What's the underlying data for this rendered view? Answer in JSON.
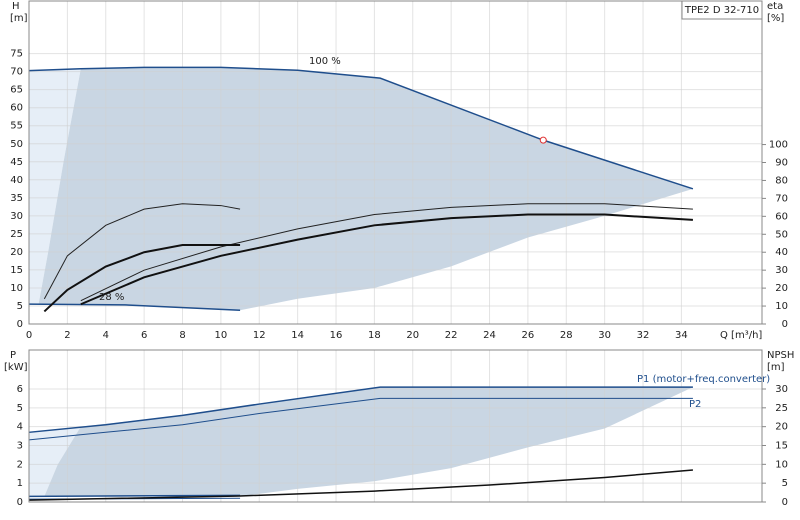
{
  "header": {
    "title": "TPE2 D 32-710"
  },
  "chart_data": [
    {
      "type": "line",
      "ylabel": "H",
      "yunit": "[m]",
      "y2label": "eta",
      "y2unit": "[%]",
      "xlabel": "Q [m³/h]",
      "annotations": [
        "100 %",
        "28 %"
      ],
      "xlim": [
        0,
        38.2
      ],
      "xticks": [
        0,
        2,
        4,
        6,
        8,
        10,
        12,
        14,
        16,
        18,
        20,
        22,
        24,
        26,
        28,
        30,
        32,
        34
      ],
      "xtick_labels": true,
      "ylim": [
        0,
        89.6
      ],
      "yticks": [
        0,
        5,
        10,
        15,
        20,
        25,
        30,
        35,
        40,
        45,
        50,
        55,
        60,
        65,
        70,
        75
      ],
      "y2lim": [
        0,
        180
      ],
      "y2ticks": [
        0,
        10,
        20,
        30,
        40,
        50,
        60,
        70,
        80,
        90,
        100
      ],
      "grid": true,
      "series": [
        {
          "kind": "area",
          "color": "#e6eef7",
          "x": [
            0,
            2.7,
            1.8,
            1.0,
            0.5,
            0
          ],
          "values": [
            70.3,
            70.8,
            45,
            20,
            5.5,
            5.5
          ]
        },
        {
          "kind": "area",
          "color": "#c9d6e3",
          "x": [
            2.7,
            6,
            10,
            14,
            18.3,
            26.8,
            34.6,
            30,
            26,
            22,
            18,
            14,
            11,
            5,
            0.5,
            1.0,
            1.8
          ],
          "values": [
            70.8,
            71.2,
            71.2,
            70.4,
            68.2,
            51,
            37.5,
            30,
            24,
            16,
            10,
            7,
            3.8,
            5.3,
            5.5,
            20,
            45
          ]
        },
        {
          "kind": "line",
          "color": "#1f4e8c",
          "width": 1.5,
          "x": [
            0,
            2.7,
            6,
            10,
            14,
            18.3,
            26.8,
            34.6
          ],
          "values": [
            70.3,
            70.8,
            71.2,
            71.2,
            70.4,
            68.2,
            51,
            37.5
          ]
        },
        {
          "kind": "line",
          "color": "#1f4e8c",
          "width": 1.5,
          "x": [
            0,
            5,
            11
          ],
          "values": [
            5.5,
            5.3,
            3.8
          ]
        },
        {
          "kind": "line",
          "color": "#222222",
          "width": 1,
          "axis": "y2",
          "x": [
            2.7,
            6,
            10,
            14,
            18,
            22,
            26,
            30,
            34.6
          ],
          "values": [
            13,
            30,
            43,
            53,
            61,
            65,
            67,
            67,
            64
          ]
        },
        {
          "kind": "line",
          "color": "#111111",
          "width": 2,
          "axis": "y2",
          "x": [
            2.7,
            6,
            10,
            14,
            18,
            22,
            26,
            30,
            34.6
          ],
          "values": [
            11,
            26,
            38,
            47,
            55,
            59,
            61,
            61,
            58
          ]
        },
        {
          "kind": "line",
          "color": "#222222",
          "width": 1,
          "axis": "y2",
          "x": [
            0.8,
            2,
            4,
            6,
            8,
            10,
            11
          ],
          "values": [
            14,
            38,
            55,
            64,
            67,
            66,
            64
          ]
        },
        {
          "kind": "line",
          "color": "#111111",
          "width": 2,
          "axis": "y2",
          "x": [
            0.8,
            2,
            4,
            6,
            8,
            10,
            11
          ],
          "values": [
            7,
            19,
            32,
            40,
            44,
            44,
            44
          ]
        }
      ],
      "duty_point": {
        "x": 26.8,
        "y": 51,
        "color": "#e03030"
      }
    },
    {
      "type": "line",
      "ylabel": "P",
      "yunit": "[kW]",
      "y2label": "NPSH",
      "y2unit": "[m]",
      "xlim": [
        0,
        38.2
      ],
      "xticks": [
        0,
        2,
        4,
        6,
        8,
        10,
        12,
        14,
        16,
        18,
        20,
        22,
        24,
        26,
        28,
        30,
        32,
        34
      ],
      "xtick_labels": false,
      "ylim": [
        0,
        8.07
      ],
      "yticks": [
        0,
        1,
        2,
        3,
        4,
        5,
        6
      ],
      "y2lim": [
        0,
        40.35
      ],
      "y2ticks": [
        0,
        5,
        10,
        15,
        20,
        25,
        30
      ],
      "grid": true,
      "series": [
        {
          "kind": "area",
          "color": "#e6eef7",
          "x": [
            0,
            2.7,
            1.5,
            0.8,
            0
          ],
          "values": [
            3.7,
            4.0,
            2,
            0.3,
            0.3
          ]
        },
        {
          "kind": "area",
          "color": "#c9d6e3",
          "x": [
            2.7,
            8,
            12,
            18.3,
            34.6,
            30,
            26,
            22,
            18,
            14,
            11,
            0.8,
            1.5
          ],
          "values": [
            4.0,
            4.6,
            5.2,
            6.1,
            6.1,
            3.9,
            2.9,
            1.8,
            1.1,
            0.7,
            0.3,
            0.3,
            2
          ]
        },
        {
          "kind": "line",
          "name": "P1 (motor+freq.converter)",
          "color": "#1f4e8c",
          "width": 1.5,
          "x": [
            0,
            4,
            8,
            12,
            18.3,
            34.6
          ],
          "values": [
            3.7,
            4.1,
            4.6,
            5.2,
            6.1,
            6.1
          ]
        },
        {
          "kind": "line",
          "name": "P2",
          "color": "#1f4e8c",
          "width": 1,
          "x": [
            0,
            4,
            8,
            12,
            18.3,
            34.6
          ],
          "values": [
            3.3,
            3.7,
            4.1,
            4.7,
            5.5,
            5.5
          ]
        },
        {
          "kind": "line",
          "color": "#1f4e8c",
          "width": 1.5,
          "x": [
            0,
            11
          ],
          "values": [
            0.3,
            0.35
          ]
        },
        {
          "kind": "line",
          "color": "#1f4e8c",
          "width": 1,
          "x": [
            0,
            11
          ],
          "values": [
            0.15,
            0.2
          ]
        },
        {
          "kind": "line",
          "color": "#111111",
          "width": 1.5,
          "axis": "y2",
          "x": [
            0,
            11,
            18,
            24,
            30,
            34.6
          ],
          "values": [
            0.5,
            1.6,
            2.9,
            4.5,
            6.5,
            8.5
          ]
        }
      ]
    }
  ]
}
